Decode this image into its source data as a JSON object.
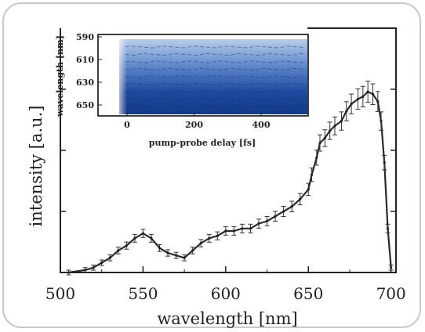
{
  "chart_data": [
    {
      "type": "line",
      "xlabel": "wavelength [nm]",
      "ylabel": "intensity [a.u.]",
      "xlim": [
        500,
        703
      ],
      "ylim": [
        0,
        1.0
      ],
      "xticks": [
        "500",
        "550",
        "600",
        "650",
        "700"
      ],
      "error_bars": true,
      "grid": false,
      "series": [
        {
          "x": [
            505,
            515,
            520,
            525,
            530,
            535,
            540,
            545,
            550,
            555,
            560,
            565,
            570,
            575,
            580,
            585,
            590,
            595,
            600,
            605,
            610,
            615,
            620,
            625,
            630,
            635,
            640,
            645,
            650,
            652,
            655,
            657,
            660,
            663,
            666,
            670,
            673,
            676,
            680,
            683,
            686,
            689,
            692,
            694,
            696,
            698,
            700
          ],
          "y": [
            0.0,
            0.01,
            0.02,
            0.04,
            0.06,
            0.09,
            0.11,
            0.14,
            0.16,
            0.14,
            0.1,
            0.08,
            0.07,
            0.06,
            0.09,
            0.12,
            0.14,
            0.15,
            0.17,
            0.17,
            0.18,
            0.18,
            0.2,
            0.21,
            0.23,
            0.25,
            0.27,
            0.3,
            0.34,
            0.4,
            0.47,
            0.53,
            0.55,
            0.58,
            0.6,
            0.62,
            0.66,
            0.69,
            0.71,
            0.72,
            0.74,
            0.73,
            0.7,
            0.62,
            0.45,
            0.18,
            0.02
          ]
        }
      ],
      "line_color": "#2a2a2a"
    },
    {
      "type": "heatmap",
      "xlabel": "pump-probe delay [fs]",
      "ylabel": "wavelength [nm]",
      "xticks": [
        "0",
        "200",
        "400"
      ],
      "yticks": [
        "590",
        "610",
        "630",
        "650"
      ],
      "colors": [
        "#0b2f78",
        "#3f6fc4",
        "#b9cde9"
      ]
    }
  ]
}
